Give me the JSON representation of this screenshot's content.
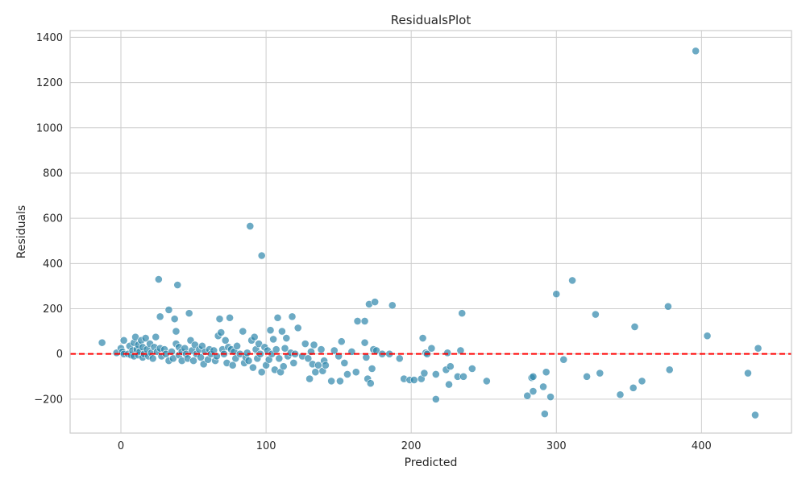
{
  "chart_data": {
    "type": "scatter",
    "title": "ResidualsPlot",
    "xlabel": "Predicted",
    "ylabel": "Residuals",
    "xlim": [
      -35,
      462
    ],
    "ylim": [
      -350,
      1430
    ],
    "xticks": [
      0,
      100,
      200,
      300,
      400
    ],
    "yticks": [
      -200,
      0,
      200,
      400,
      600,
      800,
      1000,
      1200,
      1400
    ],
    "xtick_labels": [
      "0",
      "100",
      "200",
      "300",
      "400"
    ],
    "ytick_labels": [
      "−200",
      "0",
      "200",
      "400",
      "600",
      "800",
      "1000",
      "1200",
      "1400"
    ],
    "grid": true,
    "point_color": "#2e86ab",
    "reference_line": {
      "y": 0,
      "color": "#ff0000",
      "style": "dashed"
    },
    "points": [
      [
        -13,
        50
      ],
      [
        -3,
        5
      ],
      [
        0,
        25
      ],
      [
        1,
        10
      ],
      [
        2,
        0
      ],
      [
        2,
        60
      ],
      [
        5,
        0
      ],
      [
        6,
        35
      ],
      [
        7,
        -5
      ],
      [
        8,
        15
      ],
      [
        9,
        50
      ],
      [
        9,
        -10
      ],
      [
        10,
        75
      ],
      [
        11,
        20
      ],
      [
        12,
        40
      ],
      [
        12,
        -5
      ],
      [
        13,
        10
      ],
      [
        14,
        60
      ],
      [
        15,
        30
      ],
      [
        15,
        -15
      ],
      [
        16,
        0
      ],
      [
        17,
        70
      ],
      [
        18,
        20
      ],
      [
        19,
        -10
      ],
      [
        20,
        45
      ],
      [
        21,
        5
      ],
      [
        22,
        -20
      ],
      [
        23,
        30
      ],
      [
        24,
        75
      ],
      [
        25,
        10
      ],
      [
        26,
        330
      ],
      [
        27,
        25
      ],
      [
        27,
        165
      ],
      [
        28,
        -10
      ],
      [
        30,
        20
      ],
      [
        31,
        0
      ],
      [
        33,
        195
      ],
      [
        33,
        -30
      ],
      [
        35,
        10
      ],
      [
        36,
        -20
      ],
      [
        37,
        155
      ],
      [
        38,
        100
      ],
      [
        38,
        45
      ],
      [
        39,
        305
      ],
      [
        40,
        30
      ],
      [
        40,
        -5
      ],
      [
        42,
        10
      ],
      [
        42,
        -30
      ],
      [
        44,
        25
      ],
      [
        45,
        0
      ],
      [
        46,
        -20
      ],
      [
        47,
        180
      ],
      [
        48,
        60
      ],
      [
        49,
        15
      ],
      [
        50,
        -30
      ],
      [
        51,
        40
      ],
      [
        52,
        0
      ],
      [
        54,
        20
      ],
      [
        55,
        -15
      ],
      [
        56,
        35
      ],
      [
        57,
        -45
      ],
      [
        58,
        10
      ],
      [
        60,
        -25
      ],
      [
        61,
        20
      ],
      [
        62,
        0
      ],
      [
        64,
        15
      ],
      [
        65,
        -30
      ],
      [
        66,
        -10
      ],
      [
        67,
        80
      ],
      [
        68,
        155
      ],
      [
        69,
        95
      ],
      [
        70,
        20
      ],
      [
        71,
        0
      ],
      [
        72,
        60
      ],
      [
        73,
        -40
      ],
      [
        74,
        30
      ],
      [
        75,
        160
      ],
      [
        76,
        20
      ],
      [
        77,
        -50
      ],
      [
        78,
        10
      ],
      [
        79,
        -20
      ],
      [
        80,
        35
      ],
      [
        82,
        0
      ],
      [
        84,
        100
      ],
      [
        85,
        -40
      ],
      [
        86,
        -15
      ],
      [
        87,
        5
      ],
      [
        88,
        -30
      ],
      [
        89,
        565
      ],
      [
        90,
        60
      ],
      [
        91,
        -60
      ],
      [
        92,
        75
      ],
      [
        93,
        20
      ],
      [
        94,
        -20
      ],
      [
        95,
        45
      ],
      [
        96,
        0
      ],
      [
        97,
        435
      ],
      [
        97,
        -80
      ],
      [
        99,
        30
      ],
      [
        100,
        -50
      ],
      [
        101,
        15
      ],
      [
        102,
        -25
      ],
      [
        103,
        105
      ],
      [
        104,
        0
      ],
      [
        105,
        65
      ],
      [
        106,
        -70
      ],
      [
        107,
        20
      ],
      [
        108,
        160
      ],
      [
        109,
        -20
      ],
      [
        110,
        -80
      ],
      [
        111,
        100
      ],
      [
        112,
        -55
      ],
      [
        113,
        25
      ],
      [
        114,
        70
      ],
      [
        115,
        -10
      ],
      [
        117,
        5
      ],
      [
        118,
        165
      ],
      [
        119,
        -40
      ],
      [
        120,
        0
      ],
      [
        122,
        115
      ],
      [
        125,
        -10
      ],
      [
        127,
        45
      ],
      [
        129,
        -20
      ],
      [
        130,
        -110
      ],
      [
        131,
        10
      ],
      [
        132,
        -45
      ],
      [
        133,
        40
      ],
      [
        134,
        -80
      ],
      [
        136,
        -50
      ],
      [
        138,
        20
      ],
      [
        139,
        -75
      ],
      [
        140,
        -30
      ],
      [
        141,
        -50
      ],
      [
        145,
        -120
      ],
      [
        147,
        15
      ],
      [
        150,
        -10
      ],
      [
        151,
        -120
      ],
      [
        152,
        55
      ],
      [
        154,
        -40
      ],
      [
        156,
        -90
      ],
      [
        159,
        10
      ],
      [
        162,
        -80
      ],
      [
        163,
        145
      ],
      [
        168,
        145
      ],
      [
        168,
        50
      ],
      [
        169,
        -15
      ],
      [
        170,
        -110
      ],
      [
        171,
        220
      ],
      [
        172,
        -130
      ],
      [
        173,
        -65
      ],
      [
        174,
        20
      ],
      [
        175,
        230
      ],
      [
        176,
        15
      ],
      [
        180,
        0
      ],
      [
        185,
        0
      ],
      [
        187,
        215
      ],
      [
        192,
        -20
      ],
      [
        195,
        -110
      ],
      [
        199,
        -115
      ],
      [
        202,
        -115
      ],
      [
        207,
        -110
      ],
      [
        208,
        70
      ],
      [
        209,
        -85
      ],
      [
        210,
        5
      ],
      [
        211,
        0
      ],
      [
        214,
        25
      ],
      [
        217,
        -90
      ],
      [
        217,
        -200
      ],
      [
        224,
        -70
      ],
      [
        225,
        5
      ],
      [
        226,
        -135
      ],
      [
        227,
        -55
      ],
      [
        232,
        -100
      ],
      [
        234,
        15
      ],
      [
        235,
        180
      ],
      [
        236,
        -100
      ],
      [
        242,
        -65
      ],
      [
        252,
        -120
      ],
      [
        280,
        -185
      ],
      [
        283,
        -105
      ],
      [
        284,
        -100
      ],
      [
        284,
        -165
      ],
      [
        291,
        -145
      ],
      [
        292,
        -265
      ],
      [
        293,
        -80
      ],
      [
        296,
        -190
      ],
      [
        300,
        265
      ],
      [
        305,
        -25
      ],
      [
        311,
        325
      ],
      [
        321,
        -100
      ],
      [
        327,
        175
      ],
      [
        330,
        -85
      ],
      [
        344,
        -180
      ],
      [
        353,
        -150
      ],
      [
        354,
        120
      ],
      [
        359,
        -120
      ],
      [
        377,
        210
      ],
      [
        378,
        -70
      ],
      [
        396,
        1340
      ],
      [
        404,
        80
      ],
      [
        432,
        -85
      ],
      [
        437,
        -270
      ],
      [
        439,
        25
      ]
    ]
  }
}
